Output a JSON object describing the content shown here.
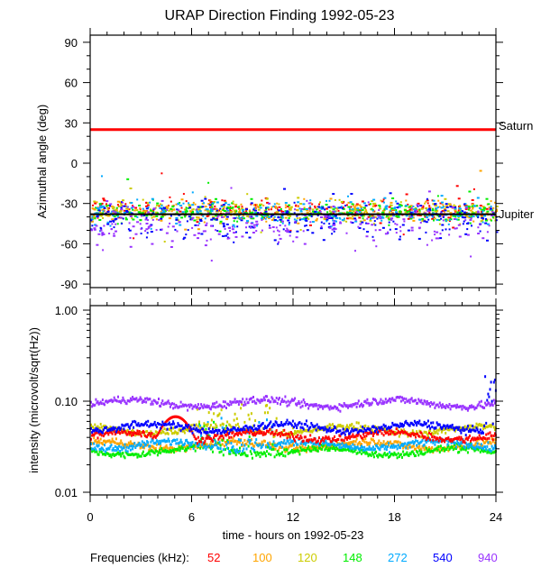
{
  "chart_data": [
    {
      "type": "scatter",
      "title": "URAP Direction Finding  1992-05-23",
      "ylabel": "Azimuthal angle (deg)",
      "xlim": [
        0,
        24
      ],
      "ylim": [
        -95,
        95
      ],
      "x_ticks": [
        "0",
        "6",
        "12",
        "18",
        "24"
      ],
      "y_ticks": [
        "90",
        "60",
        "30",
        "0",
        "-30",
        "-60",
        "-90"
      ],
      "reference_lines": [
        {
          "name": "Saturn",
          "value": 25,
          "color": "#ff0000"
        },
        {
          "name": "Jupiter",
          "value": -38,
          "color": "#000000"
        }
      ],
      "series": [
        {
          "name": "52",
          "mean_deg": -34,
          "spread_deg": 4
        },
        {
          "name": "100",
          "mean_deg": -35,
          "spread_deg": 4
        },
        {
          "name": "120",
          "mean_deg": -35,
          "spread_deg": 4
        },
        {
          "name": "148",
          "mean_deg": -36,
          "spread_deg": 3.5
        },
        {
          "name": "272",
          "mean_deg": -36,
          "spread_deg": 5
        },
        {
          "name": "540",
          "mean_deg": -41,
          "spread_deg": 7
        },
        {
          "name": "940",
          "mean_deg": -45,
          "spread_deg": 8
        }
      ]
    },
    {
      "type": "scatter",
      "ylabel": "intensity (microvolt/sqrt(Hz))",
      "xlabel": "time - hours on 1992-05-23",
      "yscale": "log",
      "xlim": [
        0,
        24
      ],
      "ylim": [
        0.01,
        1.12
      ],
      "x_ticks": [
        "0",
        "6",
        "12",
        "18",
        "24"
      ],
      "y_ticks": [
        "1.00",
        "0.10",
        "0.01"
      ],
      "series": [
        {
          "name": "52",
          "baseline": 0.043,
          "bump": {
            "hour": 5,
            "peak": 0.07
          }
        },
        {
          "name": "100",
          "baseline": 0.034
        },
        {
          "name": "120",
          "baseline": 0.05
        },
        {
          "name": "148",
          "baseline": 0.029
        },
        {
          "name": "272",
          "baseline": 0.034
        },
        {
          "name": "540",
          "baseline": 0.053,
          "spike": {
            "hour": 23.5,
            "peak": 0.22
          }
        },
        {
          "name": "940",
          "baseline": 0.098
        }
      ]
    }
  ],
  "legend": {
    "label": "Frequencies (kHz):",
    "items": [
      {
        "label": "52",
        "color": "#ff0000"
      },
      {
        "label": "100",
        "color": "#ffa500"
      },
      {
        "label": "120",
        "color": "#cccc00"
      },
      {
        "label": "148",
        "color": "#00ee00"
      },
      {
        "label": "272",
        "color": "#00aaff"
      },
      {
        "label": "540",
        "color": "#0000ff"
      },
      {
        "label": "940",
        "color": "#9933ff"
      }
    ]
  }
}
